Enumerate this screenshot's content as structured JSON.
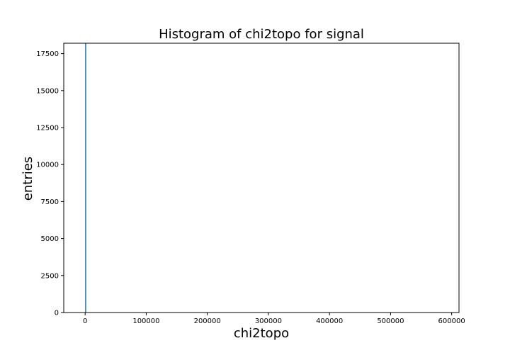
{
  "chart_data": {
    "type": "bar",
    "title": "Histogram of chi2topo for signal",
    "xlabel": "chi2topo",
    "ylabel": "entries",
    "xlim": [
      -35000,
      612000
    ],
    "ylim": [
      0,
      18200
    ],
    "xticks": [
      0,
      100000,
      200000,
      300000,
      400000,
      500000,
      600000
    ],
    "xtick_labels": [
      "0",
      "100000",
      "200000",
      "300000",
      "400000",
      "500000",
      "600000"
    ],
    "yticks": [
      0,
      2500,
      5000,
      7500,
      10000,
      12500,
      15000,
      17500
    ],
    "ytick_labels": [
      "0",
      "2500",
      "5000",
      "7500",
      "10000",
      "12500",
      "15000",
      "17500"
    ],
    "grid": false,
    "bar_color": "#1f77b4",
    "bins": [
      {
        "x0": 0,
        "x1": 1200,
        "value": 18200
      }
    ]
  }
}
